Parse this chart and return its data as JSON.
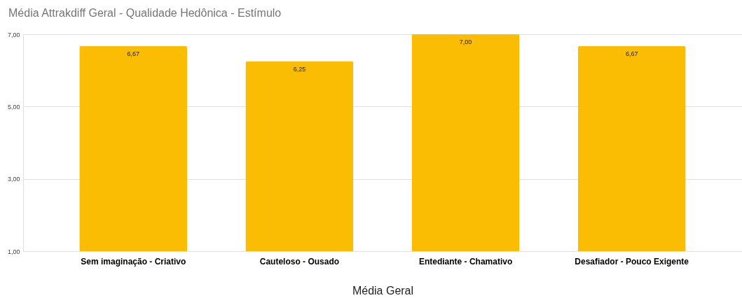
{
  "chart_data": {
    "type": "bar",
    "title": "Média Attrakdiff Geral - Qualidade Hedônica - Estímulo",
    "xlabel": "Média Geral",
    "categories": [
      "Sem imaginação - Criativo",
      "Cauteloso - Ousado",
      "Entediante - Chamativo",
      "Desafiador - Pouco Exigente"
    ],
    "values": [
      6.67,
      6.25,
      7.0,
      6.67
    ],
    "color": "#fbbc04",
    "value_labels": [
      "6,67",
      "6,25",
      "7,00",
      "6,67"
    ],
    "ylim": [
      1,
      7
    ],
    "yticks": [
      {
        "value": 1,
        "label": "1,00"
      },
      {
        "value": 3,
        "label": "3,00"
      },
      {
        "value": 5,
        "label": "5,00"
      },
      {
        "value": 7,
        "label": "7,00"
      }
    ],
    "grid": "y"
  }
}
